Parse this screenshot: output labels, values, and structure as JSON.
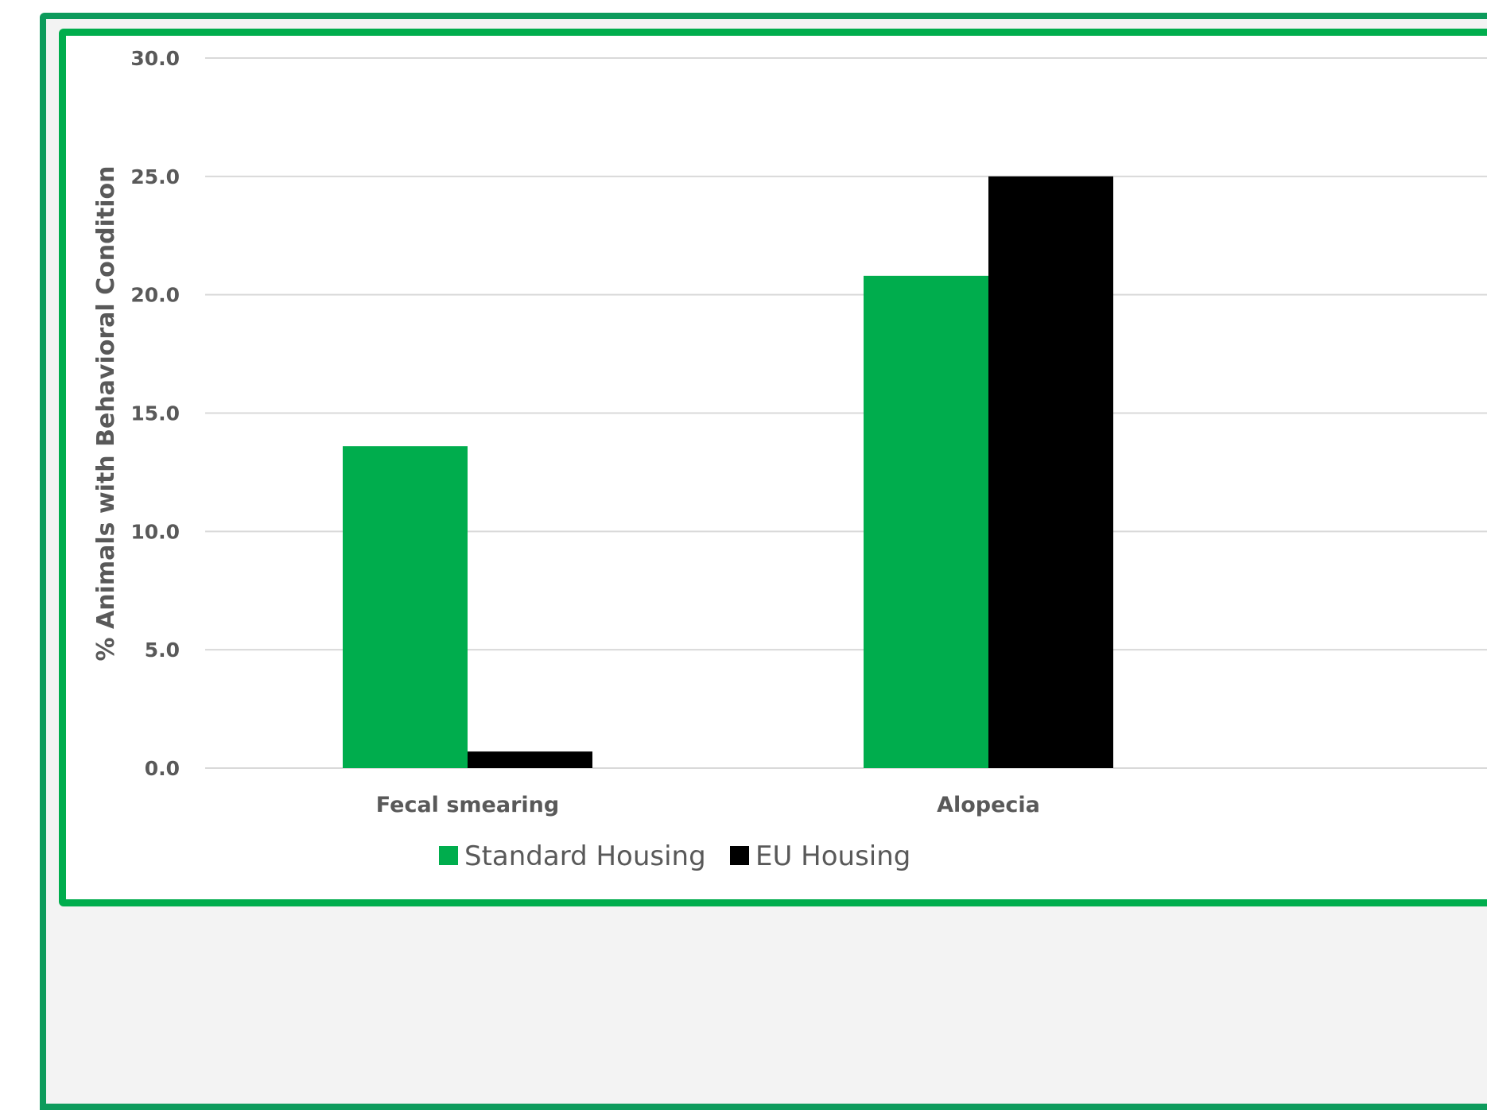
{
  "chart_data": {
    "type": "bar",
    "ylabel": "% Animals with Behavioral Condition",
    "xlabel": "",
    "ylim": [
      0,
      30
    ],
    "y_ticks": [
      "0.0",
      "5.0",
      "10.0",
      "15.0",
      "20.0",
      "25.0",
      "30.0"
    ],
    "categories": [
      "Fecal smearing",
      "Alopecia"
    ],
    "series": [
      {
        "name": "Standard Housing",
        "color": "#00ad4d",
        "values": [
          13.6,
          20.8
        ]
      },
      {
        "name": "EU Housing",
        "color": "#000000",
        "values": [
          0.7,
          25.0
        ]
      }
    ],
    "grid": true,
    "legend_position": "bottom"
  }
}
